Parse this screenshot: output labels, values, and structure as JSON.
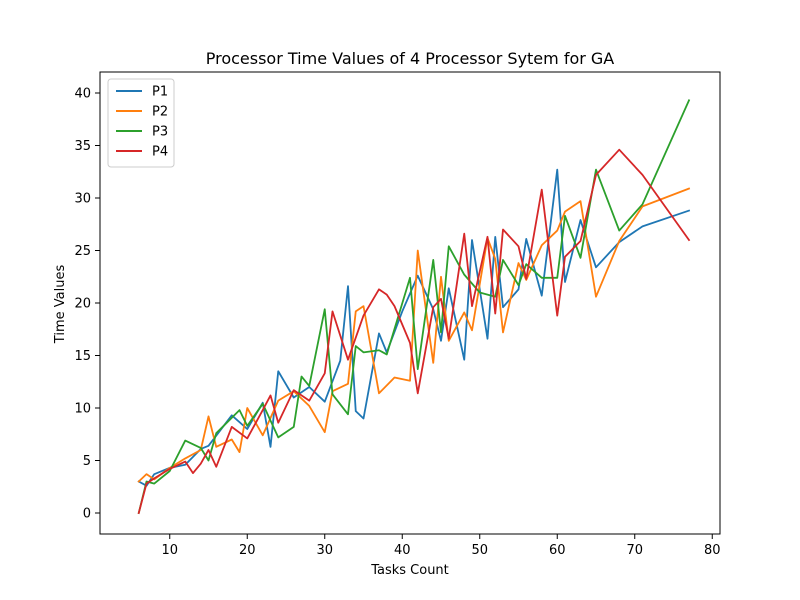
{
  "chart_data": {
    "type": "line",
    "title": "Processor Time Values of 4 Processor Sytem for GA",
    "xlabel": "Tasks Count",
    "ylabel": "Time Values",
    "xlim": [
      1,
      81
    ],
    "ylim": [
      -2,
      42
    ],
    "xticks": [
      10,
      20,
      30,
      40,
      50,
      60,
      70,
      80
    ],
    "yticks": [
      0,
      5,
      10,
      15,
      20,
      25,
      30,
      35,
      40
    ],
    "grid": false,
    "legend_position": "upper-left",
    "series": [
      {
        "name": "P1",
        "color": "#1f77b4",
        "x": [
          6,
          7,
          8,
          10,
          12,
          14,
          15,
          18,
          20,
          22,
          23,
          24,
          26,
          28,
          30,
          32,
          33,
          34,
          35,
          37,
          38,
          40,
          42,
          44,
          45,
          46,
          48,
          49,
          51,
          52,
          53,
          55,
          56,
          58,
          60,
          61,
          63,
          65,
          68,
          71,
          77
        ],
        "y": [
          3.0,
          2.6,
          3.7,
          4.3,
          4.6,
          6.1,
          6.4,
          9.3,
          8.0,
          10.5,
          6.3,
          13.5,
          11.0,
          12.0,
          10.6,
          14.5,
          21.6,
          9.7,
          9.0,
          17.1,
          15.3,
          19.2,
          22.6,
          19.4,
          16.4,
          21.4,
          14.6,
          26.0,
          16.6,
          26.3,
          19.6,
          21.3,
          26.1,
          20.7,
          32.7,
          22.0,
          27.9,
          23.4,
          25.8,
          27.3,
          28.8
        ]
      },
      {
        "name": "P2",
        "color": "#ff7f0e",
        "x": [
          6,
          7,
          8,
          10,
          12,
          14,
          15,
          16,
          18,
          19,
          20,
          22,
          24,
          26,
          28,
          30,
          31,
          33,
          34,
          35,
          37,
          39,
          41,
          42,
          44,
          45,
          46,
          48,
          49,
          51,
          52,
          53,
          55,
          56,
          58,
          60,
          61,
          63,
          65,
          68,
          71,
          77
        ],
        "y": [
          3.0,
          3.7,
          3.2,
          4.3,
          5.2,
          6.0,
          9.2,
          6.3,
          7.0,
          5.8,
          10.0,
          7.4,
          10.7,
          11.6,
          10.2,
          7.7,
          11.6,
          12.3,
          19.2,
          19.7,
          11.4,
          12.9,
          12.6,
          25.0,
          14.3,
          22.5,
          16.4,
          19.1,
          17.4,
          26.2,
          24.2,
          17.2,
          23.8,
          22.2,
          25.5,
          26.9,
          28.7,
          29.7,
          20.6,
          25.9,
          29.2,
          30.9
        ]
      },
      {
        "name": "P3",
        "color": "#2ca02c",
        "x": [
          6,
          7,
          8,
          10,
          12,
          14,
          15,
          16,
          19,
          20,
          22,
          24,
          26,
          27,
          28,
          30,
          31,
          33,
          34,
          35,
          37,
          38,
          41,
          42,
          44,
          45,
          46,
          48,
          50,
          52,
          53,
          55,
          56,
          58,
          60,
          61,
          63,
          65,
          68,
          71,
          77
        ],
        "y": [
          0.0,
          3.0,
          2.8,
          4.0,
          6.9,
          6.2,
          5.0,
          7.6,
          9.8,
          8.3,
          10.4,
          7.2,
          8.2,
          13.0,
          12.1,
          19.4,
          11.3,
          9.4,
          15.9,
          15.3,
          15.5,
          15.1,
          22.4,
          13.7,
          24.1,
          17.2,
          25.4,
          22.7,
          21.0,
          20.6,
          24.1,
          21.7,
          23.7,
          22.4,
          22.4,
          28.3,
          24.3,
          32.7,
          26.9,
          29.4,
          39.3
        ]
      },
      {
        "name": "P4",
        "color": "#d62728",
        "x": [
          6,
          7,
          8,
          10,
          12,
          13,
          14,
          15,
          16,
          18,
          20,
          22,
          23,
          24,
          26,
          28,
          30,
          31,
          33,
          35,
          37,
          38,
          39,
          41,
          42,
          44,
          45,
          46,
          48,
          49,
          51,
          52,
          53,
          55,
          56,
          58,
          60,
          61,
          63,
          65,
          68,
          71,
          77
        ],
        "y": [
          0.0,
          2.8,
          3.3,
          4.2,
          4.9,
          3.8,
          4.7,
          6.0,
          4.4,
          8.2,
          7.1,
          9.8,
          11.2,
          8.6,
          11.7,
          10.7,
          13.3,
          19.2,
          14.6,
          18.8,
          21.3,
          20.8,
          19.7,
          16.2,
          11.4,
          19.6,
          20.4,
          16.6,
          26.6,
          19.7,
          26.3,
          19.0,
          27.0,
          25.4,
          22.3,
          30.8,
          18.8,
          24.4,
          25.9,
          32.2,
          34.6,
          32.2,
          26.0
        ]
      }
    ]
  }
}
